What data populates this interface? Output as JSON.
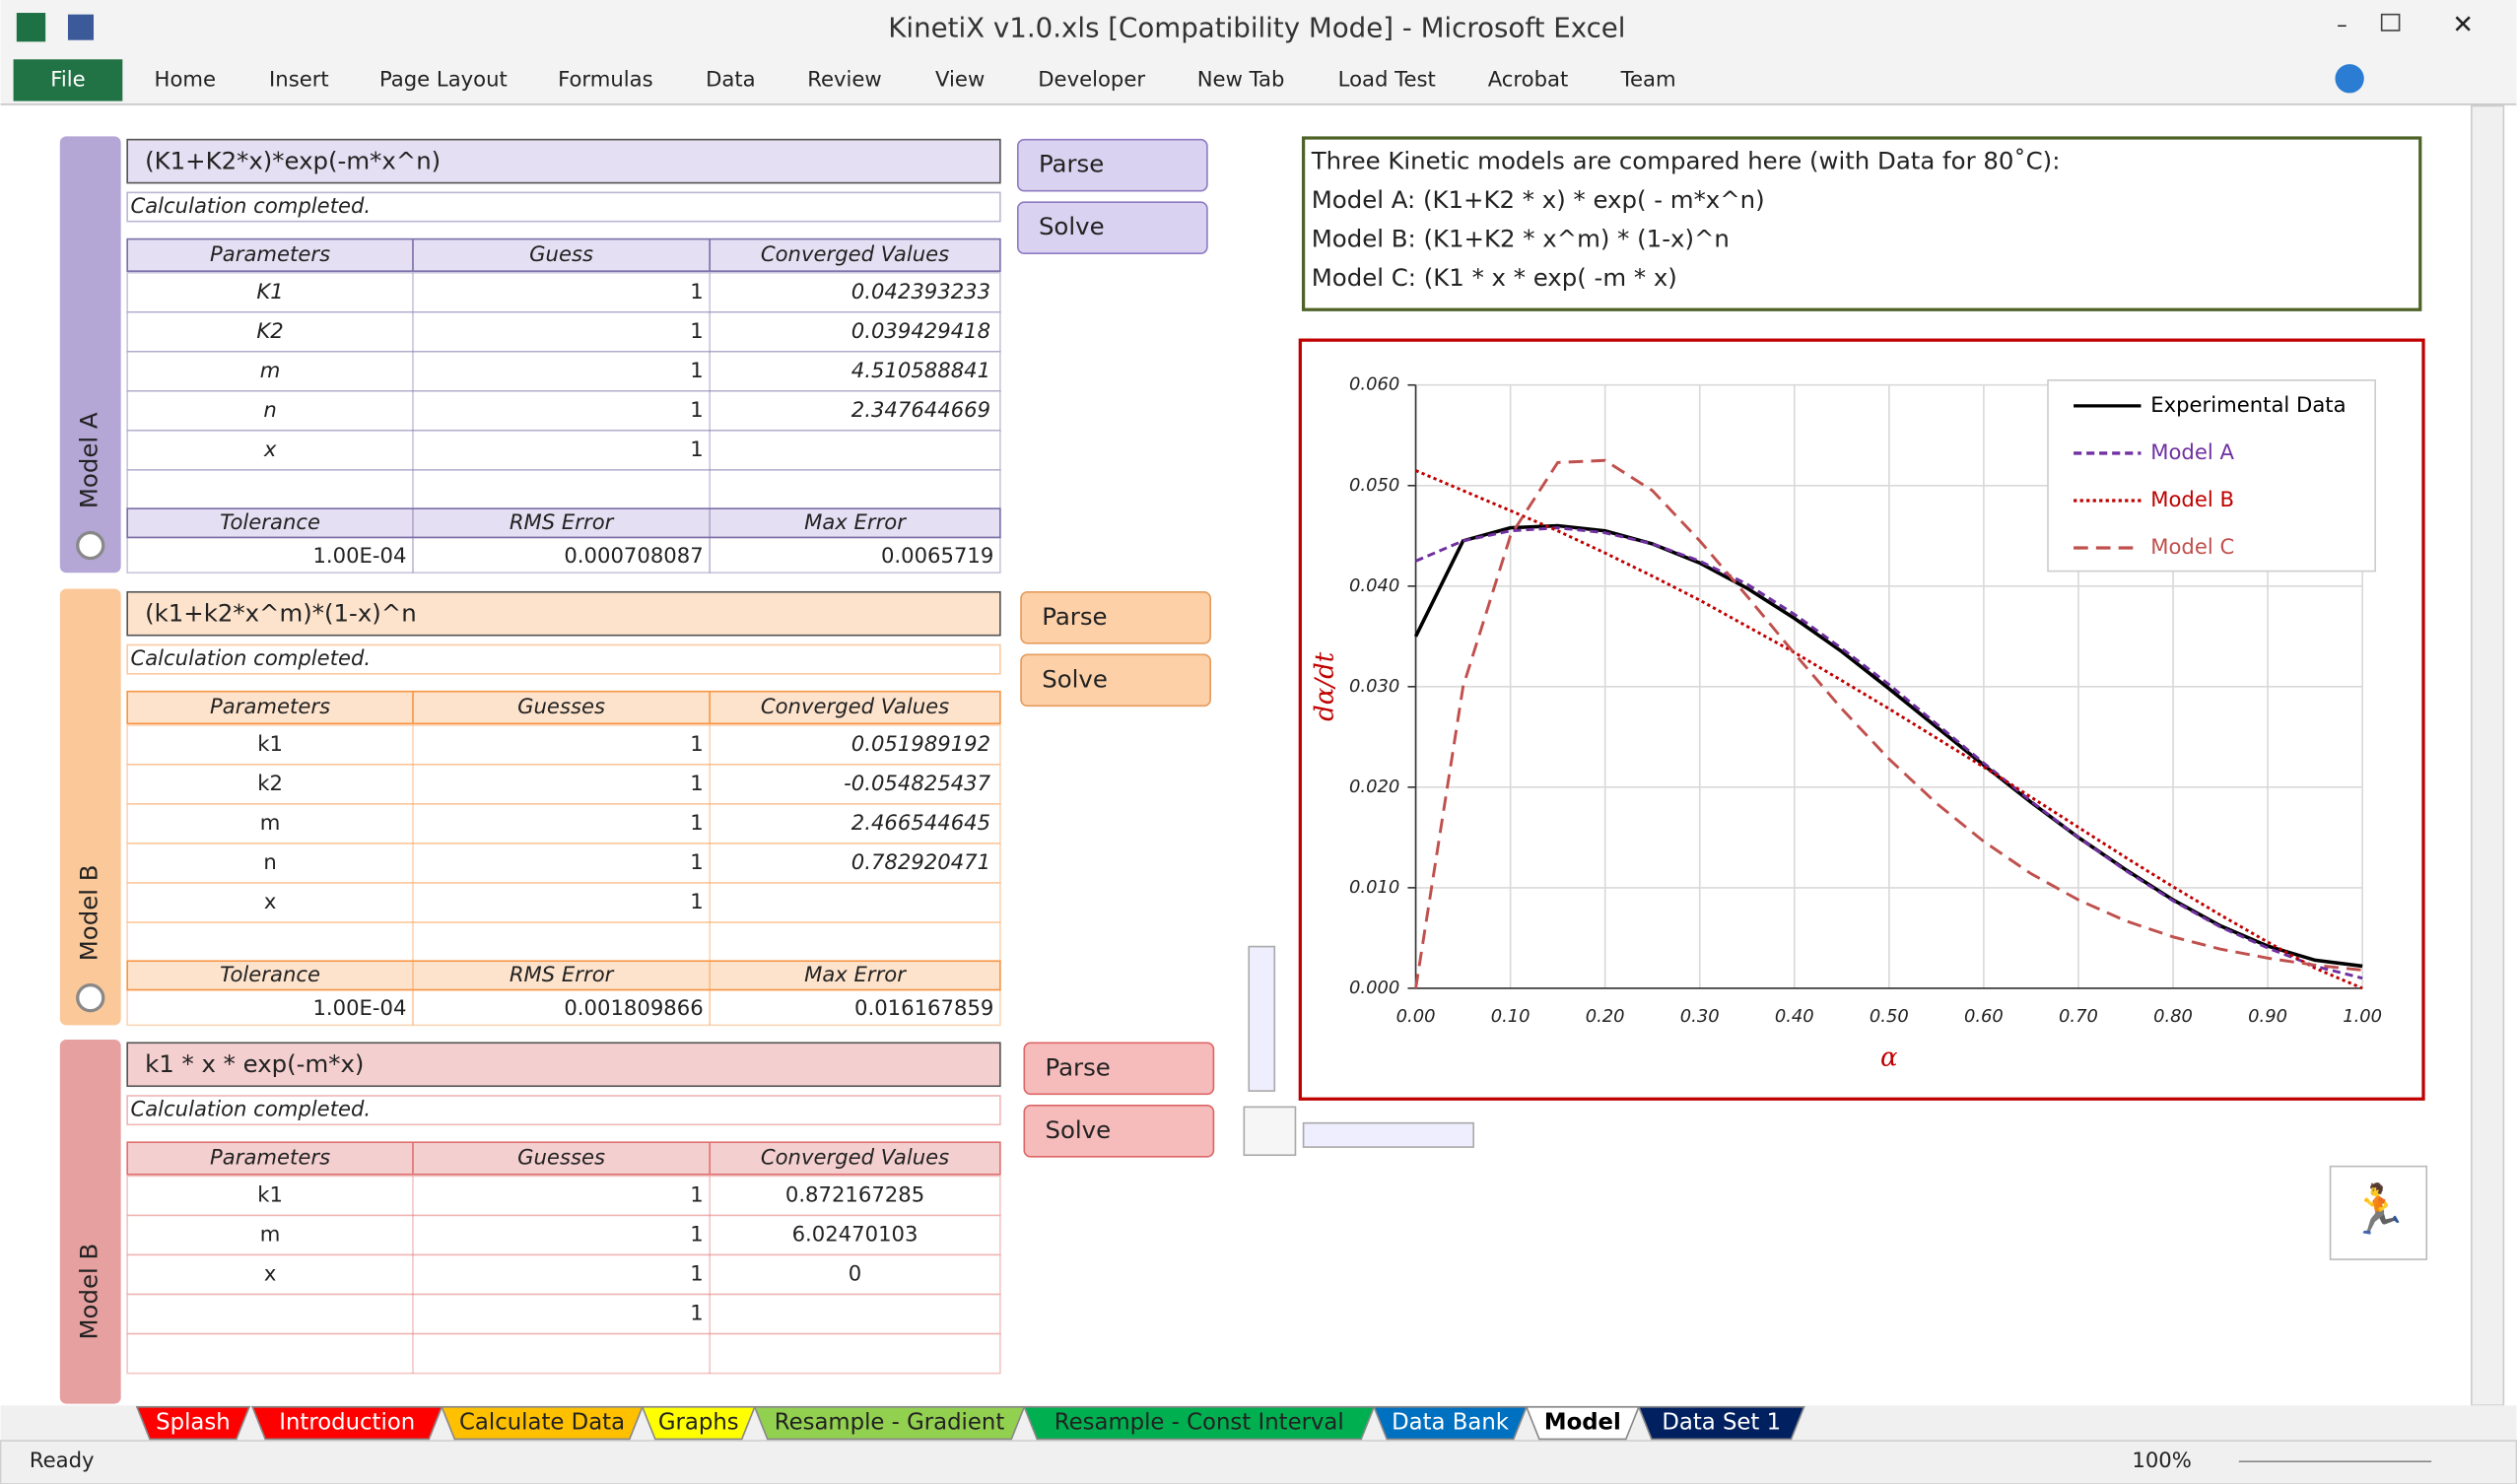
{
  "window": {
    "title": "KinetiX v1.0.xls  [Compatibility Mode]  -  Microsoft Excel",
    "file_tab": "File",
    "ribbon_tabs": [
      "Home",
      "Insert",
      "Page Layout",
      "Formulas",
      "Data",
      "Review",
      "View",
      "Developer",
      "New Tab",
      "Load Test",
      "Acrobat",
      "Team"
    ]
  },
  "panels": [
    {
      "side_label": "Model A",
      "formula": "(K1+K2*x)*exp(-m*x^n)",
      "status": "Calculation completed.",
      "buttons": [
        "Parse",
        "Solve"
      ],
      "columns": [
        "Parameters",
        "Guess",
        "Converged Values"
      ],
      "rows": [
        [
          "K1",
          "1",
          "0.042393233"
        ],
        [
          "K2",
          "1",
          "0.039429418"
        ],
        [
          "m",
          "1",
          "4.510588841"
        ],
        [
          "n",
          "1",
          "2.347644669"
        ],
        [
          "x",
          "1",
          null
        ]
      ],
      "footer_columns": [
        "Tolerance",
        "RMS Error",
        "Max Error"
      ],
      "footer_values": [
        "1.00E-04",
        "0.000708087",
        "0.0065719"
      ]
    },
    {
      "side_label": "Model B",
      "formula": "(k1+k2*x^m)*(1-x)^n",
      "status": "Calculation completed.",
      "buttons": [
        "Parse",
        "Solve"
      ],
      "columns": [
        "Parameters",
        "Guesses",
        "Converged Values"
      ],
      "rows": [
        [
          "k1",
          "1",
          "0.051989192"
        ],
        [
          "k2",
          "1",
          "-0.054825437"
        ],
        [
          "m",
          "1",
          "2.466544645"
        ],
        [
          "n",
          "1",
          "0.782920471"
        ],
        [
          "x",
          "1",
          null
        ]
      ],
      "footer_columns": [
        "Tolerance",
        "RMS Error",
        "Max Error"
      ],
      "footer_values": [
        "1.00E-04",
        "0.001809866",
        "0.016167859"
      ]
    },
    {
      "side_label": "Model B",
      "formula": "k1 * x * exp(-m*x)",
      "status": "Calculation completed.",
      "buttons": [
        "Parse",
        "Solve"
      ],
      "columns": [
        "Parameters",
        "Guesses",
        "Converged Values"
      ],
      "rows": [
        [
          "k1",
          "1",
          "0.872167285"
        ],
        [
          "m",
          "1",
          "6.02470103"
        ],
        [
          "x",
          "1",
          "0"
        ],
        [
          null,
          "1",
          null
        ]
      ]
    }
  ],
  "description": [
    "Three Kinetic models are compared here (with Data for 80˚C):",
    "Model A: (K1+K2 * x) * exp( - m*x^n)",
    "Model B: (K1+K2 * x^m) * (1-x)^n",
    "Model C: (K1 * x * exp( -m * x)"
  ],
  "chart_data": {
    "type": "line",
    "x_label": "α",
    "y_label": "dα/dt",
    "grid": true,
    "legend": "upper right",
    "x": [
      0,
      0.05,
      0.1,
      0.15,
      0.2,
      0.25,
      0.3,
      0.35,
      0.4,
      0.45,
      0.5,
      0.55,
      0.6,
      0.65,
      0.7,
      0.75,
      0.8,
      0.85,
      0.9,
      0.95,
      1.0
    ],
    "xlim": [
      0,
      1
    ],
    "ylim": [
      0,
      0.06
    ],
    "xticks": [
      {
        "value": 0,
        "label": "0.00"
      },
      {
        "value": 0.1,
        "label": "0.10"
      },
      {
        "value": 0.2,
        "label": "0.20"
      },
      {
        "value": 0.3,
        "label": "0.30"
      },
      {
        "value": 0.4,
        "label": "0.40"
      },
      {
        "value": 0.5,
        "label": "0.50"
      },
      {
        "value": 0.6,
        "label": "0.60"
      },
      {
        "value": 0.7,
        "label": "0.70"
      },
      {
        "value": 0.8,
        "label": "0.80"
      },
      {
        "value": 0.9,
        "label": "0.90"
      },
      {
        "value": 1,
        "label": "1.00"
      }
    ],
    "yticks": [
      {
        "value": 0,
        "label": "0.000"
      },
      {
        "value": 0.01,
        "label": "0.010"
      },
      {
        "value": 0.02,
        "label": "0.020"
      },
      {
        "value": 0.03,
        "label": "0.030"
      },
      {
        "value": 0.04,
        "label": "0.040"
      },
      {
        "value": 0.05,
        "label": "0.050"
      },
      {
        "value": 0.06,
        "label": "0.060"
      }
    ],
    "series": [
      {
        "name": "Experimental Data",
        "color": "#000000",
        "dash": "solid",
        "values": [
          0.035,
          0.0445,
          0.0458,
          0.046,
          0.0455,
          0.0442,
          0.0423,
          0.0398,
          0.0368,
          0.0335,
          0.0298,
          0.026,
          0.0222,
          0.0185,
          0.015,
          0.0118,
          0.0088,
          0.0062,
          0.0042,
          0.0028,
          0.0022
        ]
      },
      {
        "name": "Model A",
        "color": "#7030a0",
        "dash": "dashed",
        "values": [
          0.0425,
          0.0445,
          0.0455,
          0.0458,
          0.0453,
          0.0442,
          0.0425,
          0.0402,
          0.0372,
          0.0338,
          0.0302,
          0.0263,
          0.0224,
          0.0186,
          0.015,
          0.0117,
          0.0087,
          0.0061,
          0.004,
          0.0022,
          0.001
        ]
      },
      {
        "name": "Model B",
        "color": "#c00000",
        "dash": "dotted",
        "values": [
          0.0515,
          0.0495,
          0.0475,
          0.0455,
          0.0433,
          0.041,
          0.0386,
          0.036,
          0.0334,
          0.0306,
          0.0278,
          0.0249,
          0.022,
          0.019,
          0.016,
          0.013,
          0.0101,
          0.0073,
          0.0046,
          0.002,
          0
        ]
      },
      {
        "name": "Model C",
        "color": "#c0504d",
        "dash": "longdash",
        "values": [
          0,
          0.03,
          0.045,
          0.0523,
          0.0525,
          0.0495,
          0.0445,
          0.039,
          0.0333,
          0.0278,
          0.0228,
          0.0184,
          0.0146,
          0.0114,
          0.0088,
          0.0067,
          0.0051,
          0.0039,
          0.003,
          0.0023,
          0.0018
        ]
      }
    ]
  },
  "sheet_tabs": [
    "Splash",
    "Introduction",
    "Calculate Data",
    "Graphs",
    "Resample - Gradient",
    "Resample - Const Interval",
    "Data Bank",
    "Model",
    "Data Set 1"
  ],
  "status_bar": {
    "state": "Ready",
    "zoom": "100%"
  }
}
